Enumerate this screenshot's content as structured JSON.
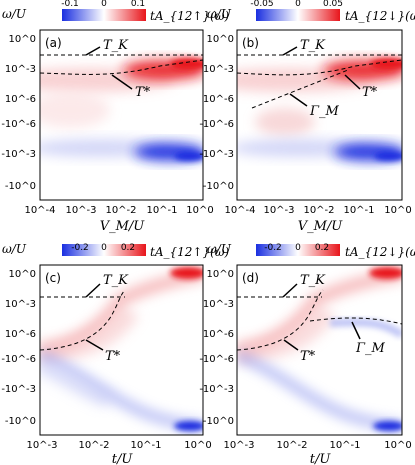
{
  "chart_data": [
    {
      "id": "a",
      "type": "heatmap",
      "panel_label": "(a)",
      "xlabel": "V_M/U",
      "ylabel": "ω/U",
      "x_ticks": [
        "10^-4",
        "10^-3",
        "10^-2",
        "10^-1",
        "10^0"
      ],
      "y_ticks": [
        "10^0",
        "10^-3",
        "10^-6",
        "-10^-6",
        "-10^-3",
        "-10^0"
      ],
      "colorbar": {
        "label": "tA_{12↑}(ω)",
        "tick_labels": [
          "-0.1",
          "0",
          "0.1"
        ],
        "range": [
          -0.1,
          0.1
        ]
      },
      "annotations": [
        "T_K",
        "T*"
      ]
    },
    {
      "id": "b",
      "type": "heatmap",
      "panel_label": "(b)",
      "xlabel": "V_M/U",
      "ylabel": "ω/U",
      "x_ticks": [
        "10^-4",
        "10^-3",
        "10^-2",
        "10^-1",
        "10^0"
      ],
      "y_ticks": [
        "10^0",
        "10^-3",
        "10^-6",
        "-10^-6",
        "-10^-3",
        "-10^0"
      ],
      "colorbar": {
        "label": "tA_{12↓}(ω)",
        "tick_labels": [
          "-0.05",
          "0",
          "0.05"
        ],
        "range": [
          -0.05,
          0.05
        ]
      },
      "annotations": [
        "T_K",
        "T*",
        "Γ_M"
      ]
    },
    {
      "id": "c",
      "type": "heatmap",
      "panel_label": "(c)",
      "xlabel": "t/U",
      "ylabel": "ω/U",
      "x_ticks": [
        "10^-3",
        "10^-2",
        "10^-1",
        "10^0"
      ],
      "y_ticks": [
        "10^0",
        "10^-3",
        "10^-6",
        "-10^-6",
        "-10^-3",
        "-10^0"
      ],
      "colorbar": {
        "label": "tA_{12↑}(ω)",
        "tick_labels": [
          "-0.2",
          "0",
          "0.2"
        ],
        "range": [
          -0.2,
          0.2
        ]
      },
      "annotations": [
        "T_K",
        "T*"
      ]
    },
    {
      "id": "d",
      "type": "heatmap",
      "panel_label": "(d)",
      "xlabel": "t/U",
      "ylabel": "ω/U",
      "x_ticks": [
        "10^-3",
        "10^-2",
        "10^-1",
        "10^0"
      ],
      "y_ticks": [
        "10^0",
        "10^-3",
        "10^-6",
        "-10^-6",
        "-10^-3",
        "-10^0"
      ],
      "colorbar": {
        "label": "tA_{12↓}(ω)",
        "tick_labels": [
          "-0.2",
          "0",
          "0.2"
        ],
        "range": [
          -0.2,
          0.2
        ]
      },
      "annotations": [
        "T_K",
        "T*",
        "Γ_M"
      ]
    }
  ],
  "colors": {
    "positive": "#e8151b",
    "negative": "#1a2fe0",
    "zero": "#ffffff",
    "guide_line": "#000000"
  }
}
